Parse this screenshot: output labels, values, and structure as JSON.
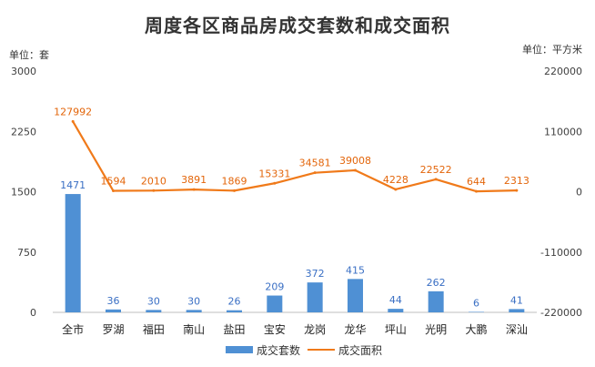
{
  "chart_data": {
    "type": "bar",
    "title": "周度各区商品房成交套数和成交面积",
    "left_unit": "单位：套",
    "right_unit": "单位：平方米",
    "categories": [
      "全市",
      "罗湖",
      "福田",
      "南山",
      "盐田",
      "宝安",
      "龙岗",
      "龙华",
      "坪山",
      "光明",
      "大鹏",
      "深汕"
    ],
    "series": [
      {
        "name": "成交套数",
        "type": "bar",
        "axis": "left",
        "color": "#4f90d4",
        "label_color": "#3a6fc4",
        "values": [
          1471,
          36,
          30,
          30,
          26,
          209,
          372,
          415,
          44,
          262,
          6,
          41
        ]
      },
      {
        "name": "成交面积",
        "type": "line",
        "axis": "right",
        "color": "#f07a1a",
        "label_color": "#e3650a",
        "values": [
          127992,
          1594,
          2010,
          3891,
          1869,
          15331,
          34581,
          39008,
          4228,
          22522,
          644,
          2313
        ]
      }
    ],
    "left_axis": {
      "min": 0,
      "max": 3000,
      "ticks": [
        "0",
        "750",
        "1500",
        "2250",
        "3000"
      ],
      "tick_values": [
        0,
        750,
        1500,
        2250,
        3000
      ]
    },
    "right_axis": {
      "min": -220000,
      "max": 220000,
      "ticks": [
        "-220000",
        "-110000",
        "0",
        "110000",
        "220000"
      ],
      "tick_values": [
        -220000,
        -110000,
        0,
        110000,
        220000
      ]
    },
    "grid": false,
    "legend_position": "bottom"
  }
}
